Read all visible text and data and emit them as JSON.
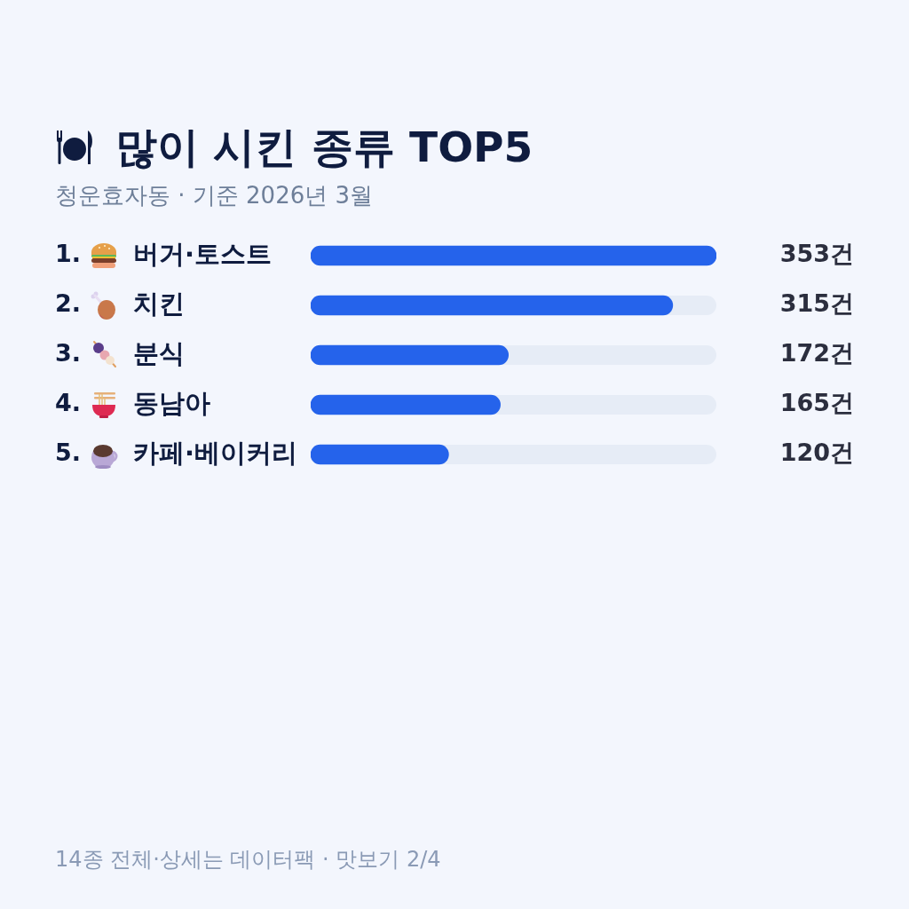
{
  "chart_data": {
    "type": "bar",
    "orientation": "horizontal",
    "title": "많이 시킨 종류 TOP5",
    "subtitle": "청운효자동 · 기준 2026년 3월",
    "categories": [
      "버거·토스트",
      "치킨",
      "분식",
      "동남아",
      "카페·베이커리"
    ],
    "values": [
      353,
      315,
      172,
      165,
      120
    ],
    "color": "#2563eb",
    "value_labels": [
      "353건",
      "315건",
      "172건",
      "165건",
      "120건"
    ],
    "xlim": [
      0,
      353
    ],
    "tick_labels": "y",
    "annotations": [
      "1.",
      "2.",
      "3.",
      "4.",
      "5.",
      "14종 전체·상세는 데이터팩 · 맛보기 2/4"
    ]
  }
}
